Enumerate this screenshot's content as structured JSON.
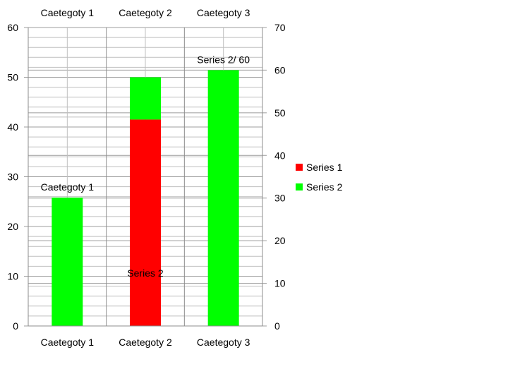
{
  "chart_data": {
    "type": "bar",
    "stacked": true,
    "categories": [
      "Caetegoty 1",
      "Caetegoty 2",
      "Caetegoty 3"
    ],
    "series": [
      {
        "name": "Series 1",
        "color": "#FF0000",
        "axis": "left",
        "values": [
          0,
          41.5,
          0
        ]
      },
      {
        "name": "Series 2",
        "color": "#00FF00",
        "axis": "left",
        "values": [
          25.8,
          8.5,
          0
        ]
      },
      {
        "name": "Series 2",
        "color": "#00FF00",
        "axis": "right",
        "values": [
          0,
          0,
          60
        ]
      }
    ],
    "left_axis": {
      "min": 0,
      "max": 60,
      "ticks": [
        "0",
        "10",
        "20",
        "30",
        "40",
        "50",
        "60"
      ]
    },
    "right_axis": {
      "min": 0,
      "max": 70,
      "ticks": [
        "0",
        "10",
        "20",
        "30",
        "40",
        "50",
        "60",
        "70"
      ]
    },
    "top_category_labels": [
      "Caetegoty 1",
      "Caetegoty 2",
      "Caetegoty 3"
    ],
    "bottom_category_labels": [
      "Caetegoty 1",
      "Caetegoty 2",
      "Caetegoty 3"
    ],
    "data_labels": [
      {
        "text": "Caetegoty 1",
        "category": 0,
        "axis": "left",
        "y": 25.8
      },
      {
        "text": "Series 2",
        "category": 1,
        "axis": "left",
        "y": 8.5
      },
      {
        "text": "Series 2/ 60",
        "category": 2,
        "axis": "right",
        "y": 60
      }
    ],
    "legend": {
      "position": "right",
      "items": [
        {
          "label": "Series 1",
          "color": "#FF0000"
        },
        {
          "label": "Series 2",
          "color": "#00FF00"
        }
      ]
    },
    "grid": true,
    "gridline_color": "#BFBFBF",
    "axis_color": "#8C8C8C"
  }
}
